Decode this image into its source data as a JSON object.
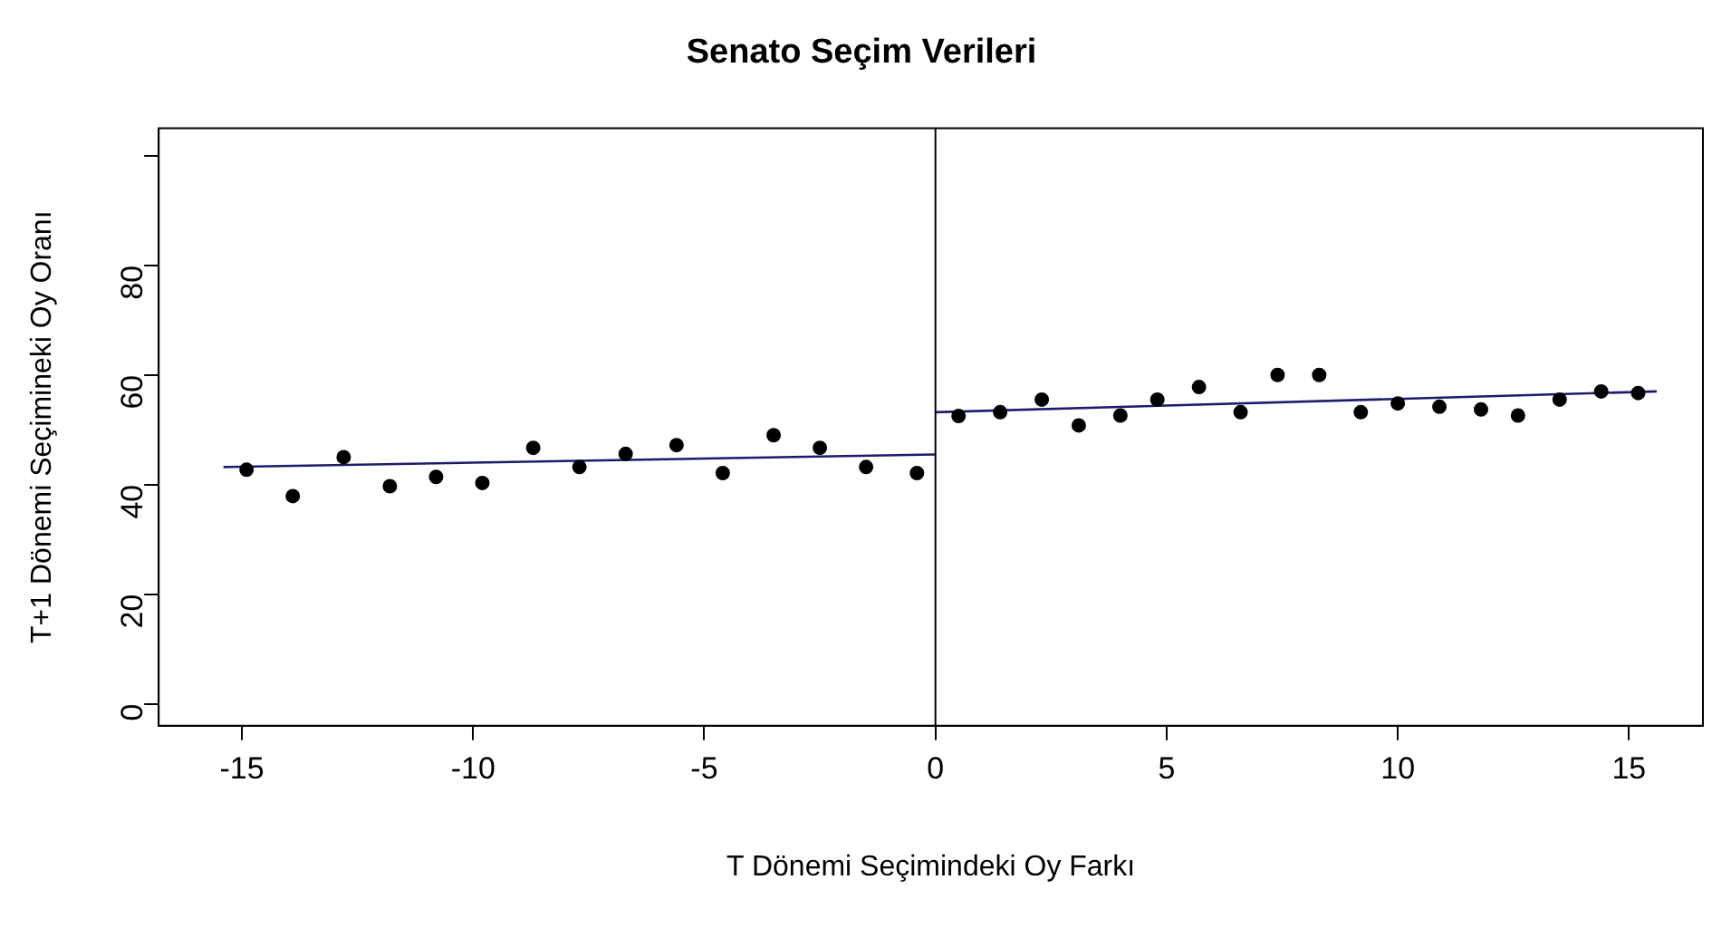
{
  "chart_data": {
    "type": "scatter",
    "title": "Senato Seçim Verileri",
    "xlabel": "T Dönemi Seçimindeki Oy Farkı",
    "ylabel": "T+1 Dönemi Seçimineki Oy Oranı",
    "xlim": [
      -16.8,
      16.6
    ],
    "xticks": [
      -15,
      -10,
      -5,
      0,
      5,
      10,
      15
    ],
    "ylim": [
      -4,
      105
    ],
    "yticks": [
      0,
      20,
      40,
      60,
      80,
      {
        "value": 100,
        "label": null
      }
    ],
    "grid": false,
    "legend": false,
    "line_style": "solid",
    "ref_lines": [
      {
        "axis": "x",
        "value": 0,
        "color": "#000000"
      }
    ],
    "series": [
      {
        "marker": "circle",
        "color": "#000000",
        "x": [
          -14.9,
          -13.9,
          -12.8,
          -11.8,
          -10.8,
          -9.8,
          -8.7,
          -7.7,
          -6.7,
          -5.6,
          -4.6,
          -3.5,
          -2.5,
          -1.5,
          -0.4
        ],
        "values": [
          42.7,
          37.9,
          45.0,
          39.7,
          41.4,
          40.3,
          46.7,
          43.2,
          45.6,
          47.2,
          42.1,
          49.0,
          46.7,
          43.2,
          42.1
        ]
      },
      {
        "marker": "circle",
        "color": "#000000",
        "x": [
          0.5,
          1.4,
          2.3,
          3.1,
          4.0,
          4.8,
          5.7,
          6.6,
          7.4,
          8.3,
          9.2,
          10.0,
          10.9,
          11.8,
          12.6,
          13.5,
          14.4,
          15.2
        ],
        "values": [
          52.5,
          53.2,
          55.5,
          50.8,
          52.6,
          55.5,
          57.8,
          53.2,
          60.0,
          60.0,
          53.2,
          54.8,
          54.2,
          53.7,
          52.6,
          55.5,
          57.0,
          56.7
        ]
      },
      {
        "type": "line",
        "marker": "none",
        "color": "#1c1c6e",
        "x": [
          -15.4,
          0
        ],
        "values": [
          43.2,
          45.5
        ]
      },
      {
        "type": "line",
        "marker": "none",
        "color": "#1c1c6e",
        "x": [
          0,
          15.6
        ],
        "values": [
          53.2,
          57.0
        ]
      }
    ]
  }
}
